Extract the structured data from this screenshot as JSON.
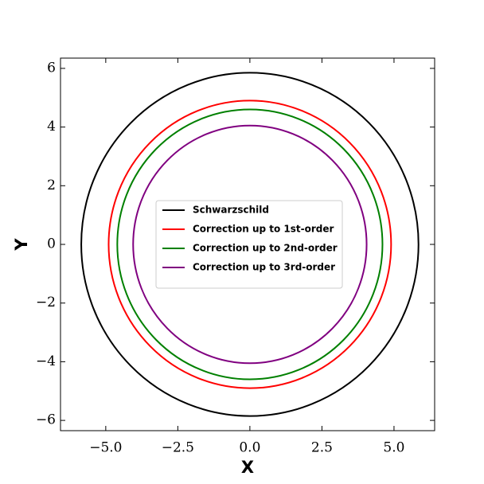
{
  "chart_data": {
    "type": "circle",
    "x_label": "X",
    "y_label": "Y",
    "center": [
      0,
      0
    ],
    "xlim": [
      -6.57,
      6.41
    ],
    "ylim": [
      -6.35,
      6.35
    ],
    "xticks": [
      {
        "value": -5,
        "label": "−5.0"
      },
      {
        "value": -2.5,
        "label": "−2.5"
      },
      {
        "value": 0,
        "label": "0.0"
      },
      {
        "value": 2.5,
        "label": "2.5"
      },
      {
        "value": 5,
        "label": "5.0"
      }
    ],
    "yticks": [
      {
        "value": -6,
        "label": "−6"
      },
      {
        "value": -4,
        "label": "−4"
      },
      {
        "value": -2,
        "label": "−2"
      },
      0,
      2,
      4,
      6
    ],
    "legend": "center",
    "series": [
      {
        "name": "Schwarzschild",
        "color": "#000000",
        "radius": 5.85
      },
      {
        "name": "Correction up to 1st-order",
        "color": "#ff0000",
        "radius": 4.9
      },
      {
        "name": "Correction up to 2nd-order",
        "color": "#008000",
        "radius": 4.6
      },
      {
        "name": "Correction up to 3rd-order",
        "color": "#800080",
        "radius": 4.05
      }
    ]
  }
}
